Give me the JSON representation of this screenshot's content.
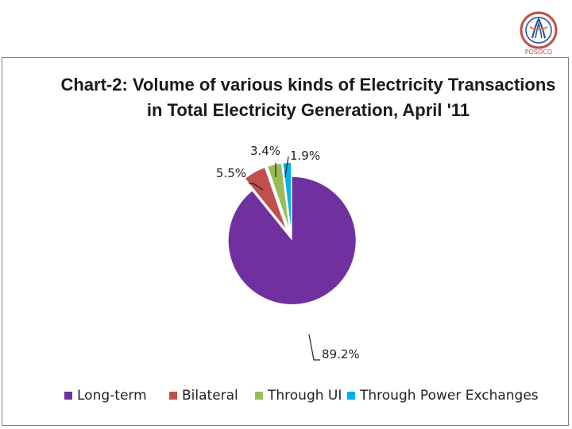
{
  "logo": {
    "text_top": "भारत विद्युत ग्रिड निगम",
    "text_bottom": "POSOCO"
  },
  "chart_data": {
    "type": "pie",
    "title_line1": "Chart-2: Volume of various kinds of Electricity Transactions",
    "title_line2": "in Total Electricity Generation,  April '11",
    "slices": [
      {
        "name": "Long-term",
        "value": 89.2,
        "label": "89.2%",
        "color": "#7030a0"
      },
      {
        "name": "Bilateral",
        "value": 5.5,
        "label": "5.5%",
        "color": "#c0504d"
      },
      {
        "name": "Through UI",
        "value": 3.4,
        "label": "3.4%",
        "color": "#9bbb59"
      },
      {
        "name": "Through Power Exchanges",
        "value": 1.9,
        "label": "1.9%",
        "color": "#00b0f0"
      }
    ],
    "exploded": true,
    "legend_position": "bottom"
  }
}
